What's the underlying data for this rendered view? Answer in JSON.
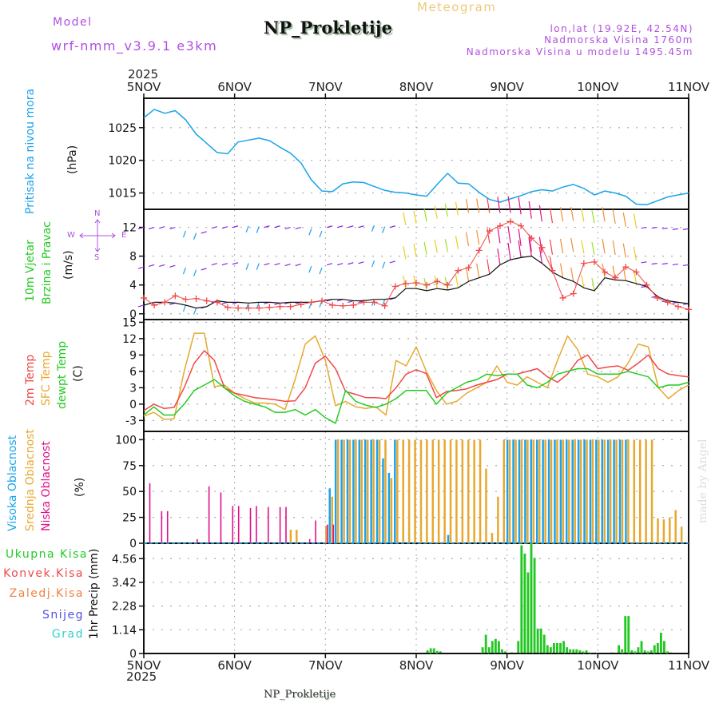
{
  "header": {
    "model_label": "Model",
    "model_value": "wrf-nmm_v3.9.1 e3km",
    "station_title": "NP_Prokletije",
    "meteogram_label": "Meteogram",
    "lonlat": "lon,lat (19.92E, 42.54N)",
    "elevation": "Nadmorska Visina 1760m",
    "model_elevation": "Nadmorska Visina u modelu 1495.45m",
    "top_year": "2025"
  },
  "footer": {
    "station_name": "NP_Prokletije",
    "bottom_year": "2025",
    "watermark": "made by Angel"
  },
  "colors": {
    "pressure": "#1aa3ec",
    "temp2m": "#f04848",
    "sfc_temp": "#e8a830",
    "dewpt": "#22cc22",
    "cloud_high": "#1aa3ec",
    "cloud_mid": "#e8a830",
    "cloud_low": "#e0108a",
    "precip_total": "#22c822",
    "precip_conv": "#f04848",
    "label_purple": "#b050e0",
    "meteogram_title": "#f0c878"
  },
  "x_axis": {
    "ticks": [
      "5NOV",
      "6NOV",
      "7NOV",
      "8NOV",
      "9NOV",
      "10NOV",
      "11NOV"
    ]
  },
  "chart_data": [
    {
      "type": "line",
      "name": "pressure",
      "title": "Pritisak na nivou mora",
      "ylabel": "(hPa)",
      "ylim": [
        1012.5,
        1029.5
      ],
      "yticks": [
        1015,
        1020,
        1025
      ],
      "x_hours_step": 3,
      "series": [
        {
          "name": "Pritisak na nivou mora",
          "values": [
            1026.5,
            1027.8,
            1027.2,
            1027.6,
            1026.2,
            1024.0,
            1022.6,
            1021.2,
            1021.0,
            1022.8,
            1023.1,
            1023.4,
            1023.0,
            1022.0,
            1021.1,
            1019.6,
            1017.0,
            1015.3,
            1015.2,
            1016.4,
            1016.7,
            1016.6,
            1016.0,
            1015.4,
            1015.1,
            1015.0,
            1014.7,
            1014.5,
            1016.3,
            1018.0,
            1016.5,
            1016.4,
            1015.1,
            1014.0,
            1013.6,
            1014.1,
            1014.6,
            1015.2,
            1015.5,
            1015.3,
            1015.9,
            1016.3,
            1015.7,
            1014.7,
            1015.3,
            1015.0,
            1014.5,
            1013.3,
            1013.2,
            1013.8,
            1014.4,
            1014.7,
            1015.0
          ]
        }
      ]
    },
    {
      "type": "line",
      "name": "wind",
      "title": "10m Vjetar Brzina i Pravac",
      "ylabel": "(m/s)",
      "ylim": [
        -0.8,
        14.5
      ],
      "yticks": [
        0,
        4,
        8,
        12
      ],
      "compass": {
        "n": "N",
        "s": "S",
        "e": "E",
        "w": "W"
      },
      "x_hours_step": 3,
      "series": [
        {
          "name": "upper level wind",
          "values": [
            12,
            12,
            12.1,
            12,
            11.5,
            11.2,
            11.4,
            12.1,
            12.1,
            12.2,
            12.2,
            12.1,
            12.2,
            12.2,
            12.0,
            12.0,
            11.8,
            11.5,
            12.2,
            12.2,
            12.2,
            12.2,
            12.3,
            12.1,
            12.2,
            12.3,
            12.5,
            12.8,
            13.2,
            13.5,
            13.7,
            14,
            14,
            14,
            14,
            14,
            13.8,
            13.2,
            12.8,
            12.6,
            12.8,
            12.9,
            12.8,
            12.6,
            12.8,
            12.5,
            12.1,
            12,
            12.0,
            12.0,
            11.9,
            11.8,
            11.8
          ]
        },
        {
          "name": "mid level wind",
          "values": [
            6.5,
            6.8,
            6.8,
            6.7,
            6.4,
            6.1,
            6.3,
            7.0,
            7.0,
            7.1,
            7.0,
            7.0,
            7.0,
            7.0,
            6.9,
            6.9,
            6.6,
            6.4,
            7.0,
            7.0,
            7.1,
            7.2,
            7.4,
            7.2,
            7.3,
            7.6,
            7.9,
            8.2,
            8.5,
            8.6,
            9.0,
            9.4,
            9.6,
            9.8,
            9.8,
            9.8,
            9.4,
            8.6,
            8.4,
            8.2,
            8.4,
            8.6,
            8.4,
            8.2,
            8.4,
            8.2,
            7.8,
            7.4,
            7.2,
            7.0,
            7.0,
            6.9,
            6.8
          ]
        },
        {
          "name": "10m wind speed",
          "values": [
            1.2,
            1.6,
            1.6,
            1.5,
            1.2,
            0.8,
            1.0,
            1.8,
            1.6,
            1.6,
            1.5,
            1.6,
            1.6,
            1.5,
            1.6,
            1.6,
            1.6,
            1.8,
            2.0,
            2.0,
            1.8,
            1.8,
            2.0,
            2.0,
            2.2,
            3.5,
            3.5,
            3.2,
            3.5,
            3.3,
            3.6,
            4.5,
            5.0,
            5.5,
            6.8,
            7.5,
            7.8,
            8.0,
            7.0,
            5.8,
            5.0,
            4.5,
            3.6,
            3.2,
            5.0,
            4.7,
            4.6,
            4.2,
            3.8,
            2.4,
            1.8,
            1.6,
            1.4
          ]
        },
        {
          "name": "gust",
          "values": [
            2.2,
            1.2,
            1.6,
            2.5,
            2.0,
            2.1,
            1.8,
            1.6,
            0.9,
            0.8,
            0.8,
            0.8,
            0.9,
            1.0,
            1.0,
            1.3,
            1.6,
            1.8,
            1.2,
            1.1,
            1.2,
            1.6,
            1.6,
            1.1,
            3.8,
            4.2,
            4.3,
            4.0,
            4.5,
            4.0,
            6.0,
            6.4,
            8.8,
            11.5,
            12.2,
            12.8,
            12.2,
            10.5,
            9.2,
            6.0,
            2.2,
            2.8,
            7.0,
            7.2,
            5.8,
            5.0,
            6.5,
            5.8,
            4.0,
            2.2,
            1.6,
            1.0,
            0.6
          ]
        }
      ]
    },
    {
      "type": "line",
      "name": "temperature",
      "title": "2m Temp / SFC Temp / dewpt Temp",
      "ylabel": "(C)",
      "ylim": [
        -5,
        15.5
      ],
      "yticks": [
        -3,
        0,
        3,
        6,
        9,
        12,
        15
      ],
      "x_hours_step": 3,
      "series": [
        {
          "name": "2m Temp",
          "values": [
            -1.2,
            0,
            -0.8,
            -0.6,
            3.0,
            7.5,
            9.8,
            8.0,
            3.0,
            2.0,
            1.6,
            1.2,
            1.0,
            0.8,
            0.5,
            0.6,
            3.0,
            7.5,
            8.8,
            6.5,
            2.3,
            1.8,
            1.2,
            1.2,
            1.0,
            3.0,
            5.5,
            6.3,
            5.6,
            1.2,
            2.3,
            2.5,
            2.8,
            3.5,
            4.0,
            4.5,
            5.5,
            5.5,
            6.0,
            6.5,
            5.0,
            4.0,
            5.5,
            8.0,
            9.0,
            6.5,
            6.8,
            7.0,
            6.2,
            7.5,
            9.0,
            6.5,
            5.5,
            5.2,
            5.0
          ]
        },
        {
          "name": "SFC Temp",
          "values": [
            -2.2,
            -1.5,
            -2.8,
            -2.7,
            6.0,
            13.0,
            13.0,
            3.2,
            3.5,
            2.0,
            1.0,
            0.2,
            0.2,
            0.0,
            -1.0,
            4.5,
            11.0,
            12.5,
            8.0,
            -0.3,
            0.5,
            -0.5,
            -0.8,
            -0.5,
            -2.0,
            8.0,
            7.0,
            10.5,
            6.0,
            2.5,
            0,
            0.5,
            2.0,
            3.0,
            4.0,
            7.0,
            4.0,
            3.5,
            5.0,
            4.0,
            3.0,
            8.0,
            12.5,
            10.0,
            5.5,
            5.0,
            4.0,
            5.0,
            7.5,
            11.0,
            10.5,
            3.0,
            1.0,
            2.5,
            3.5
          ]
        },
        {
          "name": "dewpt Temp",
          "values": [
            -2.0,
            -0.5,
            -2.0,
            -2.0,
            0,
            2.5,
            3.5,
            4.5,
            3.0,
            1.5,
            0.5,
            0,
            -0.5,
            -1.5,
            -1.5,
            -1.0,
            -2.0,
            -1.0,
            -2.5,
            -3.5,
            2.5,
            0.5,
            -0.2,
            -0.6,
            0,
            1.0,
            2.5,
            2.5,
            2.5,
            0,
            2.0,
            3.0,
            4.0,
            4.5,
            5.5,
            5.2,
            5.5,
            5.5,
            3.5,
            3.0,
            4.0,
            5.5,
            6.0,
            6.5,
            6.5,
            5.5,
            5.5,
            5.5,
            6.0,
            5.5,
            5.0,
            3.0,
            3.5,
            3.5,
            4.0
          ]
        }
      ]
    },
    {
      "type": "bar",
      "name": "cloud_cover",
      "title": "Visoka Oblacnost / Srednja Oblacnost / Niska Oblacnost",
      "ylabel": "(%)",
      "ylim": [
        0,
        108
      ],
      "yticks": [
        0,
        25,
        50,
        75,
        100
      ],
      "x_hours_step": 3,
      "series": [
        {
          "name": "Visoka Oblacnost",
          "values": [
            0,
            0,
            0,
            0,
            0,
            0,
            0,
            0,
            0,
            0,
            0,
            0,
            0,
            0,
            0,
            0,
            0,
            0,
            0,
            0,
            0,
            0,
            0,
            0,
            0,
            0,
            0,
            0,
            0,
            0,
            0,
            53,
            100,
            100,
            100,
            100,
            100,
            100,
            100,
            100,
            82,
            68,
            100,
            0,
            0,
            0,
            0,
            0,
            0,
            0,
            0,
            8,
            0,
            0,
            0,
            0,
            0,
            0,
            0,
            0,
            0,
            100,
            100,
            100,
            100,
            100,
            100,
            100,
            100,
            100,
            100,
            100,
            100,
            100,
            100,
            100,
            100,
            100,
            100,
            100,
            100,
            100,
            0,
            0,
            0,
            0,
            0,
            0,
            0,
            0,
            0,
            0
          ]
        },
        {
          "name": "Srednja Oblacnost",
          "values": [
            0,
            0,
            0,
            0,
            0,
            0,
            0,
            0,
            0,
            0,
            0,
            0,
            0,
            0,
            0,
            0,
            0,
            0,
            0,
            0,
            0,
            0,
            0,
            0,
            13,
            13,
            0,
            0,
            0,
            0,
            17,
            45,
            100,
            100,
            100,
            100,
            100,
            100,
            100,
            100,
            100,
            63,
            100,
            100,
            100,
            100,
            100,
            100,
            100,
            100,
            100,
            100,
            100,
            100,
            100,
            100,
            100,
            72,
            10,
            45,
            100,
            100,
            100,
            100,
            100,
            100,
            100,
            100,
            100,
            100,
            100,
            100,
            100,
            100,
            100,
            100,
            100,
            100,
            100,
            100,
            100,
            100,
            100,
            100,
            100,
            100,
            24,
            23,
            25,
            32,
            16,
            0
          ]
        },
        {
          "name": "Niska Oblacnost",
          "values": [
            58,
            0,
            31,
            31,
            0,
            0,
            0,
            0,
            4,
            0,
            55,
            0,
            49,
            0,
            36,
            36,
            0,
            34,
            36,
            0,
            35,
            0,
            35,
            35,
            0,
            0,
            0,
            4,
            22,
            0,
            18,
            18,
            0,
            0,
            0,
            0,
            0,
            0,
            0,
            0,
            0,
            0,
            0,
            0,
            0,
            0,
            0,
            0,
            0,
            0,
            0,
            0,
            0,
            0,
            0,
            0,
            0,
            0,
            0,
            0,
            0,
            0,
            0,
            0,
            0,
            0,
            0,
            0,
            0,
            0,
            0,
            0,
            0,
            0,
            0,
            0,
            0,
            0,
            0,
            0,
            0,
            0,
            0,
            0,
            0,
            0,
            0,
            0,
            0,
            0,
            0,
            0
          ]
        }
      ]
    },
    {
      "type": "bar",
      "name": "precipitation",
      "title": "Ukupna Kisa / Konvek.Kisa / Zaledj.Kisa / Snijeg / Grad",
      "ylabel": "1hr Precip (mm)",
      "ylim": [
        0,
        5.3
      ],
      "yticks": [
        0,
        1.14,
        2.28,
        3.42,
        4.56
      ],
      "legend": [
        "Ukupna Kisa",
        "Konvek.Kisa",
        "Zaledj.Kisa",
        "Snijeg",
        "Grad"
      ],
      "x_hours_step": 2,
      "series": [
        {
          "name": "Ukupna Kisa",
          "values": [
            0,
            0,
            0,
            0,
            0,
            0,
            0,
            0,
            0,
            0,
            0,
            0,
            0,
            0,
            0,
            0,
            0,
            0,
            0,
            0,
            0,
            0,
            0,
            0,
            0,
            0,
            0,
            0,
            0,
            0,
            0,
            0,
            0,
            0,
            0,
            0,
            0,
            0,
            0,
            0,
            0,
            0,
            0,
            0,
            0,
            0,
            0,
            0,
            0,
            0,
            0,
            0,
            0,
            0,
            0,
            0,
            0,
            0,
            0,
            0,
            0,
            0,
            0,
            0,
            0,
            0,
            0,
            0,
            0,
            0,
            0,
            0,
            0,
            0,
            0,
            0,
            0,
            0,
            0,
            0,
            0,
            0,
            0,
            0,
            0,
            0,
            0,
            0.15,
            0.25,
            0.25,
            0.12,
            0.1,
            0,
            0,
            0,
            0,
            0,
            0,
            0,
            0,
            0,
            0,
            0,
            0,
            0.3,
            0.9,
            0.3,
            0.6,
            0.7,
            0.6,
            0.2,
            0.1,
            0,
            0.05,
            0,
            0.6,
            5.2,
            4.8,
            3.9,
            5.3,
            4.6,
            1.2,
            1.2,
            0.9,
            0.4,
            0.3,
            0.5,
            0.5,
            0.5,
            0.6,
            0.3,
            0.2,
            0.2,
            0.2,
            0.15,
            0.1,
            0.15,
            0.05,
            0,
            0.05,
            0,
            0,
            0,
            0,
            0.05,
            0,
            0.4,
            0.2,
            1.8,
            1.8,
            0.15,
            0.1,
            0.3,
            0.6,
            0.15,
            0.1,
            0.15,
            0.4,
            0.5,
            1.0,
            0.6,
            0.1,
            0.05,
            0,
            0,
            0,
            0,
            0
          ]
        },
        {
          "name": "Konvek.Kisa",
          "values": []
        }
      ]
    }
  ]
}
